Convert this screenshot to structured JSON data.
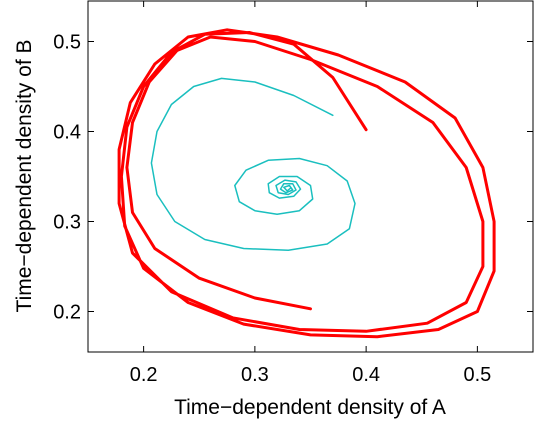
{
  "chart_data": {
    "type": "line",
    "title": "",
    "xlabel": "Time−dependent density of A",
    "ylabel": "Time−dependent density of B",
    "xlim": [
      0.15,
      0.55
    ],
    "ylim": [
      0.155,
      0.545
    ],
    "xticks": [
      0.2,
      0.3,
      0.4,
      0.5
    ],
    "yticks": [
      0.2,
      0.3,
      0.4,
      0.5
    ],
    "xtick_labels": [
      "0.2",
      "0.3",
      "0.4",
      "0.5"
    ],
    "ytick_labels": [
      "0.2",
      "0.3",
      "0.4",
      "0.5"
    ],
    "grid": false,
    "legend": "none",
    "series": [
      {
        "color": "#ff0000",
        "points": [
          [
            0.35,
            0.203
          ],
          [
            0.3,
            0.215
          ],
          [
            0.25,
            0.237
          ],
          [
            0.21,
            0.27
          ],
          [
            0.19,
            0.31
          ],
          [
            0.185,
            0.36
          ],
          [
            0.19,
            0.41
          ],
          [
            0.205,
            0.455
          ],
          [
            0.23,
            0.49
          ],
          [
            0.26,
            0.505
          ],
          [
            0.3,
            0.5
          ],
          [
            0.35,
            0.48
          ],
          [
            0.41,
            0.45
          ],
          [
            0.46,
            0.41
          ],
          [
            0.49,
            0.36
          ],
          [
            0.505,
            0.3
          ],
          [
            0.505,
            0.25
          ],
          [
            0.49,
            0.21
          ],
          [
            0.455,
            0.187
          ],
          [
            0.4,
            0.178
          ],
          [
            0.34,
            0.18
          ],
          [
            0.28,
            0.193
          ],
          [
            0.225,
            0.222
          ],
          [
            0.19,
            0.265
          ],
          [
            0.178,
            0.32
          ],
          [
            0.178,
            0.38
          ],
          [
            0.188,
            0.432
          ],
          [
            0.21,
            0.475
          ],
          [
            0.24,
            0.505
          ],
          [
            0.275,
            0.513
          ],
          [
            0.32,
            0.505
          ],
          [
            0.375,
            0.485
          ],
          [
            0.435,
            0.455
          ],
          [
            0.48,
            0.415
          ],
          [
            0.505,
            0.36
          ],
          [
            0.515,
            0.3
          ],
          [
            0.515,
            0.245
          ],
          [
            0.5,
            0.2
          ],
          [
            0.465,
            0.18
          ],
          [
            0.41,
            0.172
          ],
          [
            0.35,
            0.174
          ],
          [
            0.29,
            0.186
          ],
          [
            0.24,
            0.21
          ],
          [
            0.2,
            0.248
          ],
          [
            0.183,
            0.295
          ],
          [
            0.18,
            0.35
          ],
          [
            0.185,
            0.405
          ],
          [
            0.2,
            0.45
          ],
          [
            0.225,
            0.488
          ],
          [
            0.255,
            0.508
          ],
          [
            0.295,
            0.51
          ],
          [
            0.335,
            0.497
          ],
          [
            0.37,
            0.46
          ],
          [
            0.4,
            0.402
          ]
        ]
      },
      {
        "color": "#1abfbf",
        "points": [
          [
            0.37,
            0.418
          ],
          [
            0.335,
            0.44
          ],
          [
            0.3,
            0.455
          ],
          [
            0.27,
            0.459
          ],
          [
            0.245,
            0.45
          ],
          [
            0.225,
            0.43
          ],
          [
            0.212,
            0.4
          ],
          [
            0.207,
            0.365
          ],
          [
            0.212,
            0.33
          ],
          [
            0.228,
            0.3
          ],
          [
            0.255,
            0.28
          ],
          [
            0.29,
            0.27
          ],
          [
            0.33,
            0.268
          ],
          [
            0.365,
            0.275
          ],
          [
            0.385,
            0.292
          ],
          [
            0.39,
            0.32
          ],
          [
            0.383,
            0.345
          ],
          [
            0.365,
            0.362
          ],
          [
            0.34,
            0.37
          ],
          [
            0.312,
            0.368
          ],
          [
            0.292,
            0.357
          ],
          [
            0.282,
            0.34
          ],
          [
            0.286,
            0.322
          ],
          [
            0.3,
            0.312
          ],
          [
            0.32,
            0.308
          ],
          [
            0.34,
            0.312
          ],
          [
            0.352,
            0.325
          ],
          [
            0.35,
            0.34
          ],
          [
            0.338,
            0.35
          ],
          [
            0.322,
            0.35
          ],
          [
            0.312,
            0.342
          ],
          [
            0.313,
            0.332
          ],
          [
            0.322,
            0.326
          ],
          [
            0.335,
            0.328
          ],
          [
            0.341,
            0.336
          ],
          [
            0.337,
            0.344
          ],
          [
            0.327,
            0.346
          ],
          [
            0.319,
            0.34
          ],
          [
            0.321,
            0.332
          ],
          [
            0.33,
            0.33
          ],
          [
            0.337,
            0.335
          ],
          [
            0.334,
            0.342
          ],
          [
            0.326,
            0.342
          ],
          [
            0.323,
            0.336
          ],
          [
            0.328,
            0.332
          ],
          [
            0.334,
            0.335
          ],
          [
            0.331,
            0.34
          ],
          [
            0.326,
            0.338
          ],
          [
            0.329,
            0.334
          ],
          [
            0.332,
            0.337
          ]
        ]
      }
    ]
  }
}
